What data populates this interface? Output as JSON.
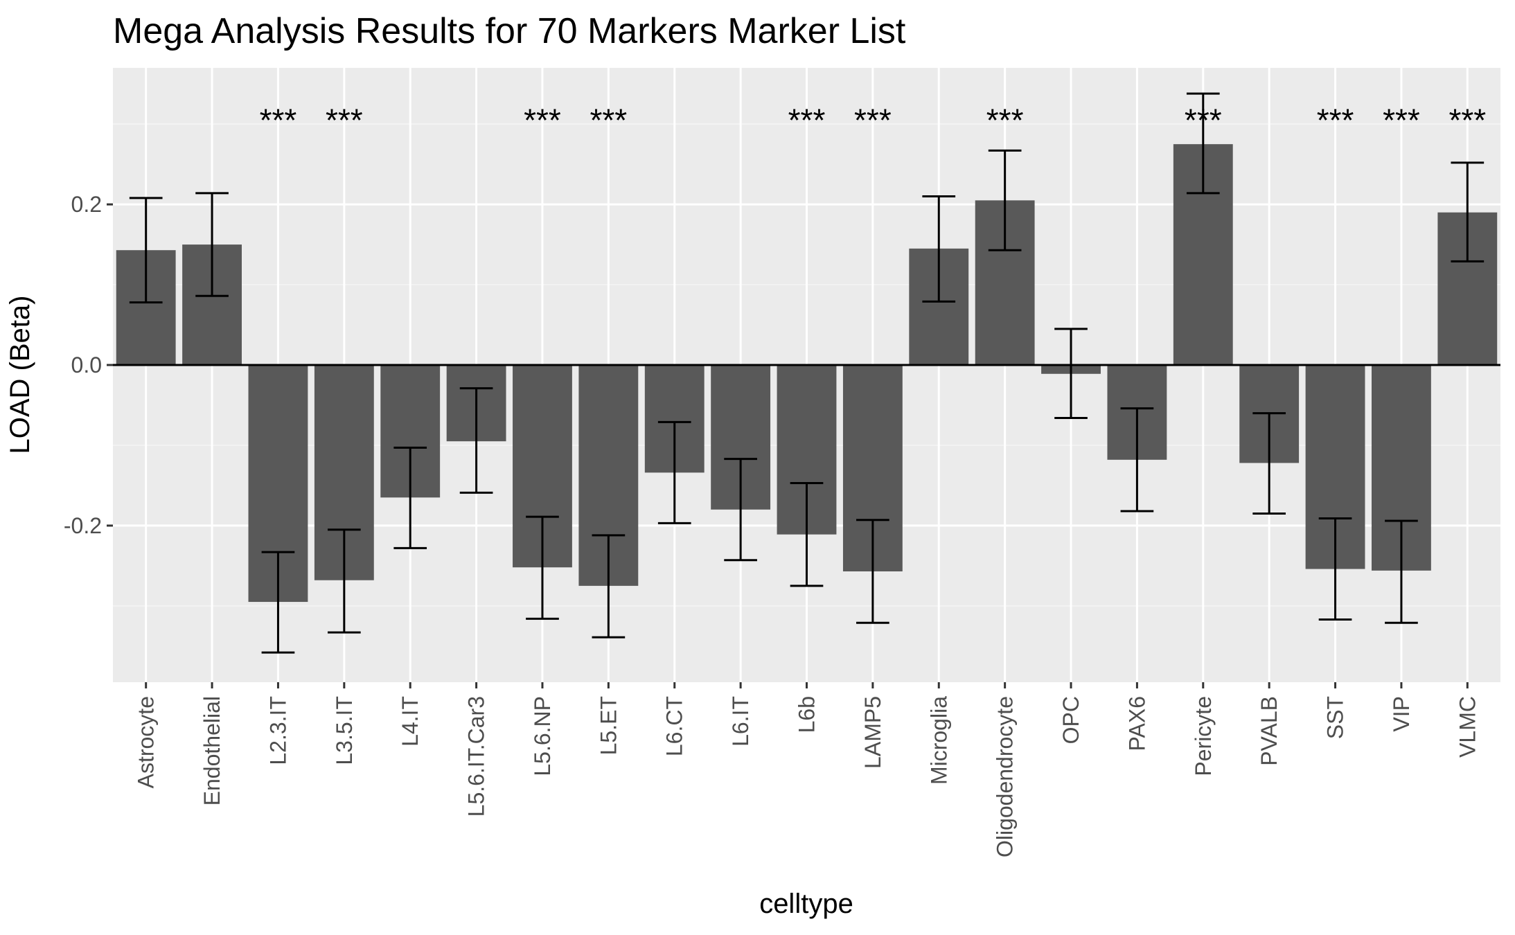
{
  "chart_data": {
    "type": "bar",
    "title": "Mega Analysis Results for 70 Markers Marker List",
    "xlabel": "celltype",
    "ylabel": "LOAD (Beta)",
    "ylim": [
      -0.395,
      0.37
    ],
    "yticks": [
      -0.2,
      0.0,
      0.2
    ],
    "ytick_labels": [
      "-0.2",
      "0.0",
      "0.2"
    ],
    "grid": true,
    "categories": [
      "Astrocyte",
      "Endothelial",
      "L2.3.IT",
      "L3.5.IT",
      "L4.IT",
      "L5.6.IT.Car3",
      "L5.6.NP",
      "L5.ET",
      "L6.CT",
      "L6.IT",
      "L6b",
      "LAMP5",
      "Microglia",
      "Oligodendrocyte",
      "OPC",
      "PAX6",
      "Pericyte",
      "PVALB",
      "SST",
      "VIP",
      "VLMC"
    ],
    "values": [
      0.143,
      0.15,
      -0.295,
      -0.268,
      -0.165,
      -0.095,
      -0.252,
      -0.275,
      -0.134,
      -0.18,
      -0.211,
      -0.257,
      0.145,
      0.205,
      -0.011,
      -0.118,
      0.275,
      -0.122,
      -0.254,
      -0.256,
      0.19
    ],
    "error_low": [
      0.078,
      0.086,
      -0.358,
      -0.333,
      -0.228,
      -0.159,
      -0.316,
      -0.339,
      -0.197,
      -0.243,
      -0.275,
      -0.321,
      0.079,
      0.143,
      -0.066,
      -0.182,
      0.214,
      -0.185,
      -0.317,
      -0.321,
      0.129
    ],
    "error_high": [
      0.208,
      0.214,
      -0.233,
      -0.205,
      -0.103,
      -0.029,
      -0.189,
      -0.212,
      -0.071,
      -0.117,
      -0.147,
      -0.193,
      0.21,
      0.267,
      0.045,
      -0.054,
      0.338,
      -0.06,
      -0.191,
      -0.194,
      0.252
    ],
    "significance": [
      "",
      "",
      "***",
      "***",
      "",
      "",
      "***",
      "***",
      "",
      "",
      "***",
      "***",
      "",
      "***",
      "",
      "",
      "***",
      "",
      "***",
      "***",
      "***"
    ],
    "significance_y": 0.305,
    "colors": {
      "bar": "#595959",
      "panel": "#ebebeb",
      "grid_major": "#ffffff",
      "grid_minor": "#f5f5f5",
      "errorbar": "#000000",
      "zero_line": "#000000"
    }
  }
}
